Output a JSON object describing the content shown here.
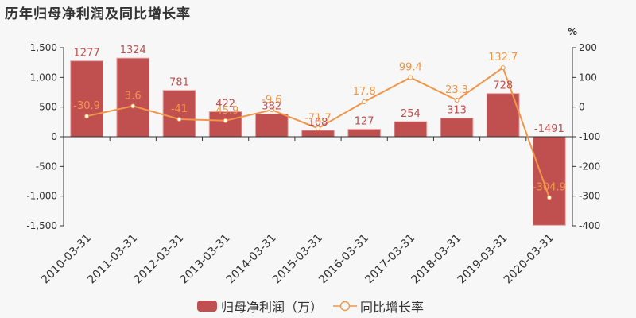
{
  "title": "历年归母净利润及同比增长率",
  "colors": {
    "bar": "#c04f4f",
    "line": "#f0964a",
    "axis": "#333333",
    "background": "#f7f7f7"
  },
  "legend": {
    "bar_label": "归母净利润（万）",
    "line_label": "同比增长率"
  },
  "right_axis_unit": "%",
  "chart_data": {
    "type": "bar",
    "title": "历年归母净利润及同比增长率",
    "categories": [
      "2010-03-31",
      "2011-03-31",
      "2012-03-31",
      "2013-03-31",
      "2014-03-31",
      "2015-03-31",
      "2016-03-31",
      "2017-03-31",
      "2018-03-31",
      "2019-03-31",
      "2020-03-31"
    ],
    "series": [
      {
        "name": "归母净利润（万）",
        "type": "bar",
        "axis": "left",
        "values": [
          1277,
          1324,
          781,
          422,
          382,
          108,
          127,
          254,
          313,
          728,
          -1491
        ]
      },
      {
        "name": "同比增长率",
        "type": "line",
        "axis": "right",
        "values": [
          -30.9,
          3.6,
          -41,
          -45.9,
          -9.6,
          -71.7,
          17.8,
          99.4,
          23.3,
          132.7,
          -304.9
        ]
      }
    ],
    "left_axis": {
      "ylim": [
        -1500,
        1500
      ],
      "ticks": [
        "1,500",
        "1,000",
        "500",
        "0",
        "-500",
        "-1,000",
        "-1,500"
      ]
    },
    "right_axis": {
      "label": "%",
      "ylim": [
        -400,
        200
      ],
      "ticks": [
        "200",
        "100",
        "0",
        "-100",
        "-200",
        "-300",
        "-400"
      ]
    },
    "xlabel": "",
    "ylabel": "",
    "grid": false,
    "legend_position": "bottom"
  }
}
